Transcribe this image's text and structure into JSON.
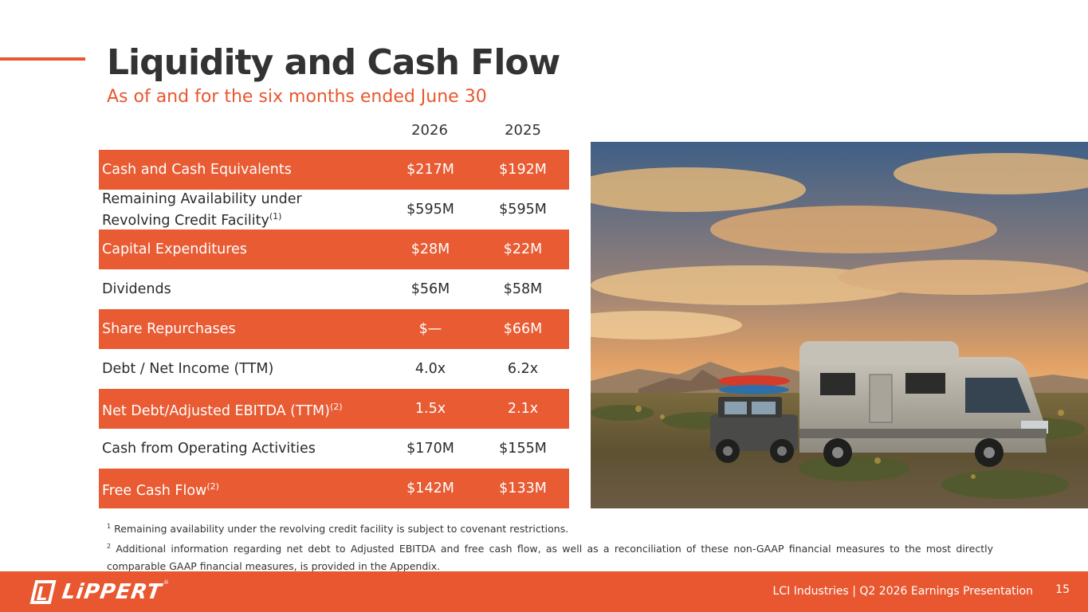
{
  "header": {
    "title": "Liquidity and Cash Flow",
    "subtitle": "As of and for the six months ended June 30"
  },
  "table": {
    "columns": [
      "2026",
      "2025"
    ],
    "rows": [
      {
        "label": "Cash and Cash Equivalents",
        "sup": "",
        "v2026": "$217M",
        "v2025": "$192M",
        "highlight": true
      },
      {
        "label_line1": "Remaining Availability under",
        "label_line2": "Revolving Credit Facility",
        "sup": "(1)",
        "v2026": "$595M",
        "v2025": "$595M",
        "highlight": false
      },
      {
        "label": "Capital Expenditures",
        "sup": "",
        "v2026": "$28M",
        "v2025": "$22M",
        "highlight": true
      },
      {
        "label": "Dividends",
        "sup": "",
        "v2026": "$56M",
        "v2025": "$58M",
        "highlight": false
      },
      {
        "label": "Share Repurchases",
        "sup": "",
        "v2026": "$—",
        "v2025": "$66M",
        "highlight": true
      },
      {
        "label": "Debt / Net Income (TTM)",
        "sup": "",
        "v2026": "4.0x",
        "v2025": "6.2x",
        "highlight": false
      },
      {
        "label": "Net Debt/Adjusted EBITDA (TTM)",
        "sup": "(2)",
        "v2026": "1.5x",
        "v2025": "2.1x",
        "highlight": true
      },
      {
        "label": "Cash from Operating Activities",
        "sup": "",
        "v2026": "$170M",
        "v2025": "$155M",
        "highlight": false
      },
      {
        "label": "Free Cash Flow",
        "sup": "(2)",
        "v2026": "$142M",
        "v2025": "$133M",
        "highlight": true
      }
    ]
  },
  "footnotes": {
    "n1": "1",
    "fn1": "Remaining availability under the revolving credit facility is subject to covenant restrictions.",
    "n2": "2",
    "fn2": "Additional information regarding net debt to Adjusted EBITDA and free cash flow, as well as a reconciliation of these non-GAAP financial measures to the most directly comparable GAAP financial measures, is provided in the Appendix."
  },
  "footer": {
    "logo_text": "LiPPERT",
    "logo_tm": "®",
    "presentation": "LCI Industries | Q2 2026 Earnings Presentation",
    "page_number": "15"
  },
  "colors": {
    "accent": "#e8572f",
    "row_highlight": "#e85b33",
    "title": "#333333"
  },
  "photo": {
    "icon": "rv-desert-sunset-photo"
  }
}
